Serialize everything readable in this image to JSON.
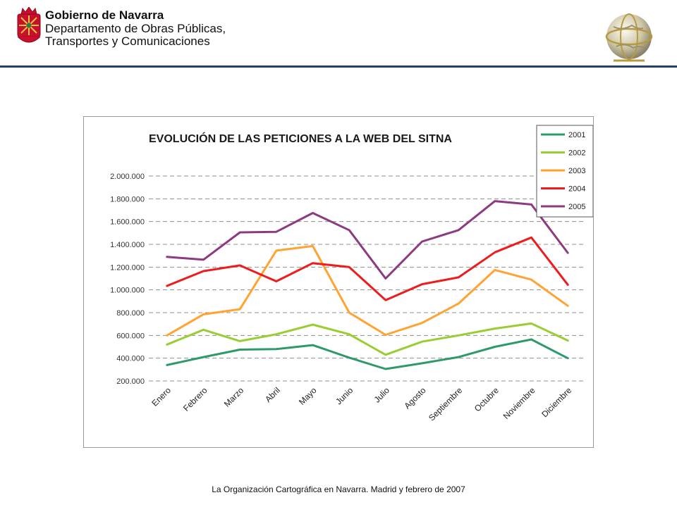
{
  "header": {
    "org_name": "Gobierno de Navarra",
    "department_lines": [
      "Departamento de Obras Públicas,",
      "Transportes y Comunicaciones"
    ],
    "rule_color": "#25416b",
    "crest_color": "#c8102e"
  },
  "footer": {
    "text": "La Organización Cartográfica en Navarra. Madrid y febrero de 2007"
  },
  "chart_data": {
    "type": "line",
    "title": "EVOLUCIÓN DE LAS PETICIONES A LA WEB DEL SITNA",
    "xlabel": "",
    "ylabel": "",
    "categories": [
      "Enero",
      "Febrero",
      "Marzo",
      "Abril",
      "Mayo",
      "Junio",
      "Julio",
      "Agosto",
      "Septiembre",
      "Octubre",
      "Noviembre",
      "Diciembre"
    ],
    "ylim": [
      200000,
      2000000
    ],
    "yticks": [
      200000,
      400000,
      600000,
      800000,
      1000000,
      1200000,
      1400000,
      1600000,
      1800000,
      2000000
    ],
    "ytick_labels": [
      "200.000",
      "400.000",
      "600.000",
      "800.000",
      "1.000.000",
      "1.200.000",
      "1.400.000",
      "1.600.000",
      "1.800.000",
      "2.000.000"
    ],
    "grid": true,
    "grid_style": "dashed",
    "legend_position": "top-right",
    "series": [
      {
        "name": "2001",
        "color": "#2e9a6a",
        "values": [
          340000,
          410000,
          475000,
          480000,
          515000,
          405000,
          305000,
          355000,
          410000,
          500000,
          565000,
          400000
        ]
      },
      {
        "name": "2002",
        "color": "#9acd32",
        "values": [
          520000,
          650000,
          550000,
          610000,
          695000,
          610000,
          430000,
          545000,
          600000,
          660000,
          705000,
          555000
        ]
      },
      {
        "name": "2003",
        "color": "#ffa333",
        "values": [
          600000,
          785000,
          830000,
          1345000,
          1385000,
          800000,
          605000,
          710000,
          880000,
          1175000,
          1090000,
          860000
        ]
      },
      {
        "name": "2004",
        "color": "#ee1c1c",
        "values": [
          1035000,
          1165000,
          1215000,
          1075000,
          1235000,
          1200000,
          910000,
          1050000,
          1110000,
          1330000,
          1460000,
          1045000
        ]
      },
      {
        "name": "2005",
        "color": "#8e3a80",
        "values": [
          1290000,
          1265000,
          1505000,
          1510000,
          1675000,
          1525000,
          1100000,
          1425000,
          1525000,
          1780000,
          1750000,
          1325000
        ]
      }
    ]
  }
}
